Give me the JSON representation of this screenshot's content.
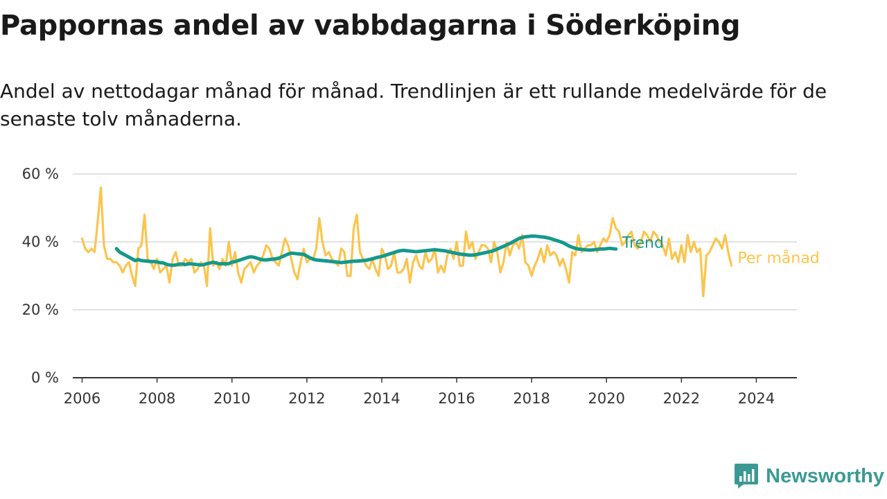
{
  "page": {
    "title": "Pappornas andel av vabbdagarna i Söderköping",
    "subtitle": "Andel av nettodagar månad för månad. Trendlinjen är ett rullande medelvärde för de senaste tolv månaderna."
  },
  "brand": {
    "name": "Newsworthy",
    "icon": "newsworthy-logo-icon",
    "color": "#3a9a93"
  },
  "chart_data": {
    "type": "line",
    "title": "Pappornas andel av vabbdagarna i Söderköping",
    "subtitle": "Andel av nettodagar månad för månad. Trendlinjen är ett rullande medelvärde för de senaste tolv månaderna.",
    "xlabel": "",
    "ylabel": "",
    "x_ticks": [
      "2006",
      "2008",
      "2010",
      "2012",
      "2014",
      "2016",
      "2018",
      "2020",
      "2022",
      "2024"
    ],
    "y_ticks": [
      "0 %",
      "20 %",
      "40 %",
      "60 %"
    ],
    "xlim": [
      "2005-10",
      "2025-02"
    ],
    "ylim": [
      0,
      60
    ],
    "grid": "horizontal",
    "legend": "labels at line ends (right)",
    "series": [
      {
        "name": "Per månad",
        "color": "#fcc44c",
        "start": "2006-01",
        "values": [
          41,
          38,
          37,
          38,
          37,
          46,
          56,
          39,
          35,
          35,
          34,
          34,
          33,
          31,
          33,
          34,
          30,
          27,
          38,
          39,
          48,
          35,
          34,
          32,
          35,
          31,
          32,
          33,
          28,
          35,
          37,
          33,
          33,
          35,
          34,
          35,
          31,
          32,
          34,
          33,
          27,
          44,
          33,
          34,
          32,
          35,
          33,
          40,
          33,
          37,
          31,
          28,
          32,
          33,
          34,
          31,
          33,
          34,
          36,
          39,
          38,
          35,
          34,
          33,
          37,
          41,
          39,
          35,
          31,
          29,
          34,
          38,
          34,
          35,
          35,
          38,
          47,
          40,
          36,
          37,
          35,
          34,
          33,
          38,
          37,
          30,
          30,
          44,
          48,
          37,
          35,
          33,
          32,
          35,
          32,
          30,
          38,
          36,
          32,
          33,
          37,
          31,
          31,
          32,
          35,
          28,
          34,
          36,
          33,
          32,
          37,
          34,
          35,
          38,
          31,
          33,
          31,
          36,
          38,
          35,
          40,
          33,
          33,
          43,
          38,
          40,
          35,
          37,
          39,
          39,
          38,
          34,
          40,
          37,
          31,
          34,
          40,
          36,
          39,
          40,
          38,
          42,
          34,
          33,
          30,
          33,
          35,
          38,
          34,
          39,
          36,
          37,
          36,
          33,
          35,
          32,
          28,
          37,
          36,
          42,
          37,
          38,
          39,
          39,
          40,
          37,
          39,
          41,
          40,
          42,
          47,
          44,
          43,
          39,
          40,
          42,
          43,
          39,
          38,
          40,
          43,
          42,
          40,
          43,
          42,
          40,
          39,
          36,
          41,
          35,
          37,
          34,
          39,
          34,
          42,
          37,
          40,
          37,
          38,
          24,
          36,
          37,
          39,
          41,
          40,
          38,
          42,
          37,
          33
        ]
      },
      {
        "name": "Trend",
        "color": "#14998c",
        "start": "2006-12",
        "values": [
          38,
          37,
          36.5,
          36,
          35.5,
          35,
          34.5,
          34.8,
          34.5,
          34.4,
          34.3,
          34.2,
          34.2,
          34.1,
          33.9,
          33.8,
          33.4,
          33.2,
          33.1,
          33.2,
          33.4,
          33.5,
          33.3,
          33.5,
          33.5,
          33.4,
          33.3,
          33.2,
          33.3,
          33.6,
          33.8,
          34,
          33.8,
          33.5,
          33.6,
          33.5,
          33.6,
          34,
          34.2,
          34.5,
          34.8,
          35.1,
          35.4,
          35.6,
          35.5,
          35.2,
          34.9,
          34.7,
          34.7,
          34.8,
          34.9,
          35,
          35.2,
          35.6,
          36,
          36.4,
          36.7,
          36.6,
          36.5,
          36.4,
          36.3,
          35.8,
          35.3,
          34.9,
          34.7,
          34.6,
          34.5,
          34.4,
          34.3,
          34.2,
          34.1,
          34,
          33.9,
          34,
          34.1,
          34.2,
          34.3,
          34.3,
          34.4,
          34.5,
          34.6,
          34.8,
          35,
          35.3,
          35.5,
          35.7,
          36,
          36.3,
          36.6,
          36.9,
          37.2,
          37.4,
          37.5,
          37.4,
          37.3,
          37.2,
          37.1,
          37.2,
          37.3,
          37.4,
          37.5,
          37.6,
          37.7,
          37.6,
          37.5,
          37.4,
          37.2,
          37,
          36.8,
          36.6,
          36.4,
          36.3,
          36.2,
          36.1,
          36.1,
          36.2,
          36.4,
          36.6,
          36.8,
          37,
          37.2,
          37.5,
          37.9,
          38.3,
          38.7,
          39.1,
          39.5,
          40,
          40.5,
          41,
          41.3,
          41.5,
          41.6,
          41.7,
          41.7,
          41.6,
          41.5,
          41.4,
          41.2,
          41,
          40.7,
          40.4,
          40.1,
          39.8,
          39.3,
          38.8,
          38.4,
          38.1,
          37.9,
          37.8,
          37.7,
          37.6,
          37.6,
          37.7,
          37.8,
          37.9,
          37.9,
          38,
          38.1,
          38,
          37.9
        ]
      }
    ]
  }
}
